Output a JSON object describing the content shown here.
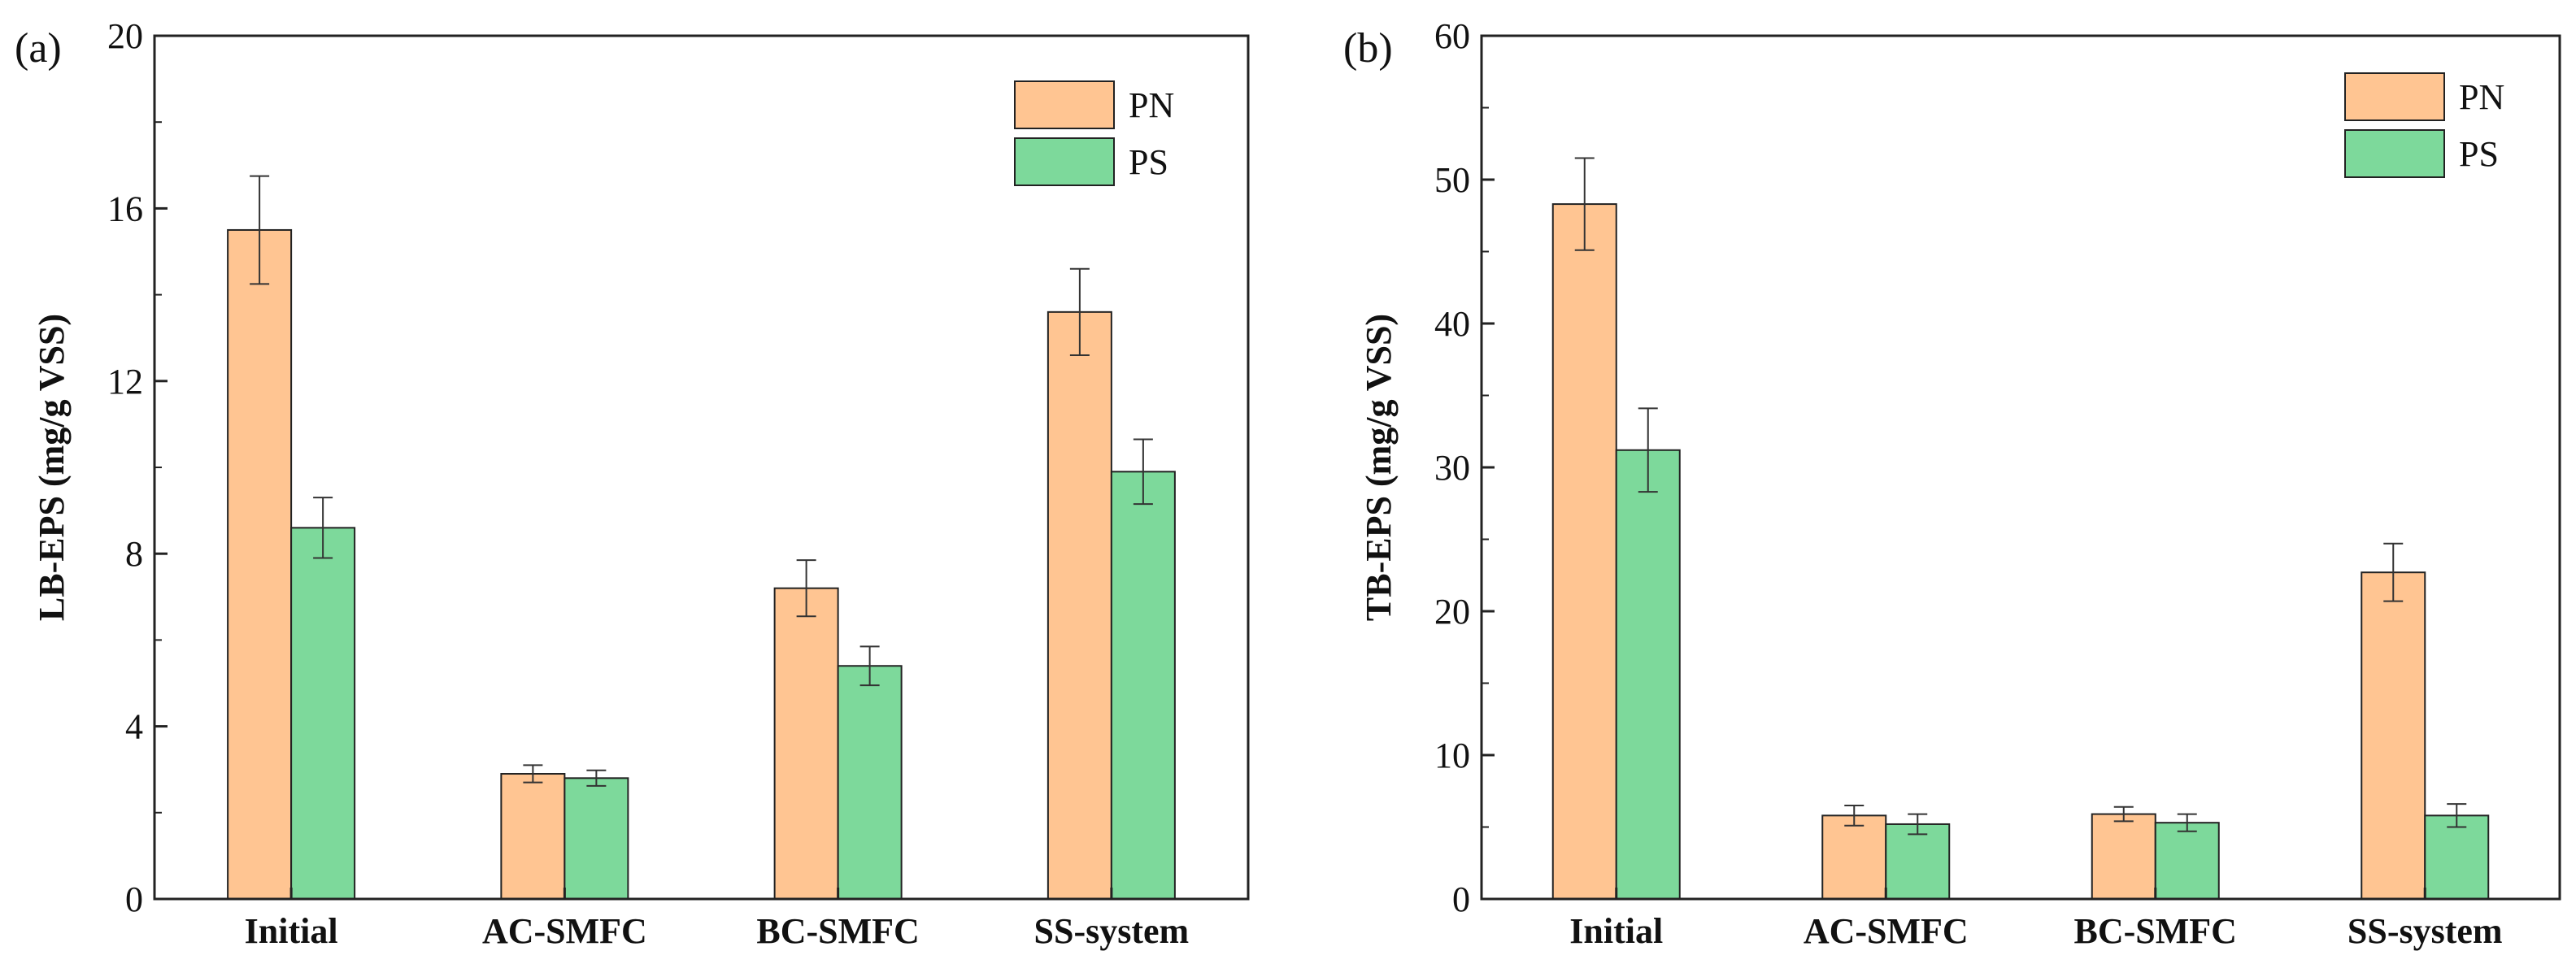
{
  "chart_data": [
    {
      "type": "bar",
      "panel_label": "(a)",
      "ylabel": "LB-EPS (mg/g VSS)",
      "xlabel": "",
      "ylim": [
        0,
        20
      ],
      "yticks": [
        0,
        4,
        8,
        12,
        16,
        20
      ],
      "categories": [
        "Initial",
        "AC-SMFC",
        "BC-SMFC",
        "SS-system"
      ],
      "series": [
        {
          "name": "PN",
          "color": "#FFC592",
          "values": [
            15.5,
            2.9,
            7.2,
            13.6
          ],
          "errors": [
            1.25,
            0.2,
            0.65,
            1.0
          ]
        },
        {
          "name": "PS",
          "color": "#7DD99B",
          "values": [
            8.6,
            2.8,
            5.4,
            9.9
          ],
          "errors": [
            0.7,
            0.18,
            0.45,
            0.75
          ]
        }
      ],
      "legend_position": "top-right",
      "grid": false
    },
    {
      "type": "bar",
      "panel_label": "(b)",
      "ylabel": "TB-EPS (mg/g VSS)",
      "xlabel": "",
      "ylim": [
        0,
        60
      ],
      "yticks": [
        0,
        10,
        20,
        30,
        40,
        50,
        60
      ],
      "categories": [
        "Initial",
        "AC-SMFC",
        "BC-SMFC",
        "SS-system"
      ],
      "series": [
        {
          "name": "PN",
          "color": "#FFC592",
          "values": [
            48.3,
            5.8,
            5.9,
            22.7
          ],
          "errors": [
            3.2,
            0.7,
            0.5,
            2.0
          ]
        },
        {
          "name": "PS",
          "color": "#7DD99B",
          "values": [
            31.2,
            5.2,
            5.3,
            5.8
          ],
          "errors": [
            2.9,
            0.7,
            0.6,
            0.8
          ]
        }
      ],
      "legend_position": "top-right",
      "grid": false
    }
  ]
}
